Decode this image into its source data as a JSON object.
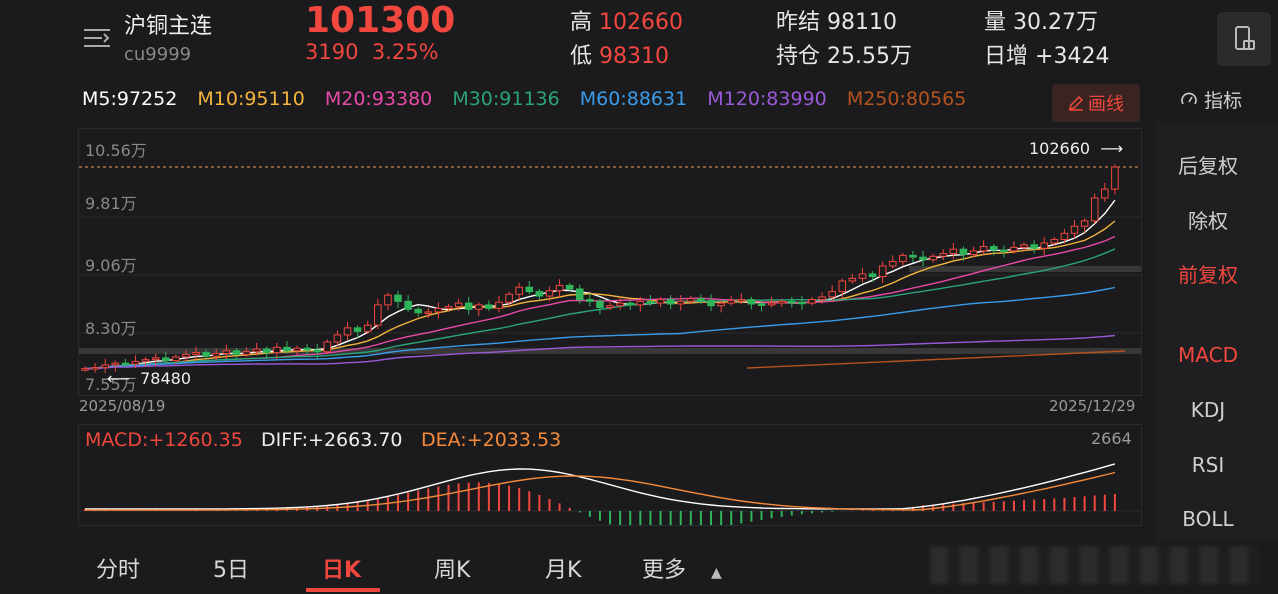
{
  "header": {
    "symbol_name": "沪铜主连",
    "symbol_code": "cu9999",
    "last_price": "101300",
    "change": "3190",
    "change_pct": "3.25%",
    "high_label": "高",
    "high": "102660",
    "low_label": "低",
    "low": "98310",
    "prev_settle_label": "昨结",
    "prev_settle": "98110",
    "open_interest_label": "持仓",
    "open_interest": "25.55万",
    "volume_label": "量",
    "volume": "30.27万",
    "daily_increase_label": "日增",
    "daily_increase": "+3424"
  },
  "ma": [
    {
      "label": "M5:97252",
      "color": "#ffffff"
    },
    {
      "label": "M10:95110",
      "color": "#f5b43c"
    },
    {
      "label": "M20:93380",
      "color": "#e84aa8"
    },
    {
      "label": "M30:91136",
      "color": "#2aa37a"
    },
    {
      "label": "M60:88631",
      "color": "#3a9be8"
    },
    {
      "label": "M120:83990",
      "color": "#9a5ad8"
    },
    {
      "label": "M250:80565",
      "color": "#b5531f"
    }
  ],
  "toolbar": {
    "draw_label": "画线",
    "indicator_label": "指标"
  },
  "side_menu": [
    {
      "label": "后复权",
      "active": false
    },
    {
      "label": "除权",
      "active": false
    },
    {
      "label": "前复权",
      "active": true
    },
    {
      "label": "MACD",
      "active": true
    },
    {
      "label": "KDJ",
      "active": false
    },
    {
      "label": "RSI",
      "active": false
    },
    {
      "label": "BOLL",
      "active": false
    }
  ],
  "chart_data": {
    "type": "candlestick",
    "y_ticks": [
      "10.56万",
      "9.81万",
      "9.06万",
      "8.30万",
      "7.55万"
    ],
    "ylim": [
      75500,
      105600
    ],
    "date_start": "2025/08/19",
    "date_end": "2025/12/29",
    "max_marker": "102660",
    "min_marker": "78480",
    "macd": {
      "macd_label": "MACD:+1260.35",
      "diff_label": "DIFF:+2663.70",
      "dea_label": "DEA:+2033.53",
      "top_value": "2664"
    }
  },
  "tabs": [
    {
      "label": "分时",
      "active": false
    },
    {
      "label": "5日",
      "active": false
    },
    {
      "label": "日K",
      "active": true
    },
    {
      "label": "周K",
      "active": false
    },
    {
      "label": "月K",
      "active": false
    },
    {
      "label": "更多",
      "active": false
    }
  ]
}
